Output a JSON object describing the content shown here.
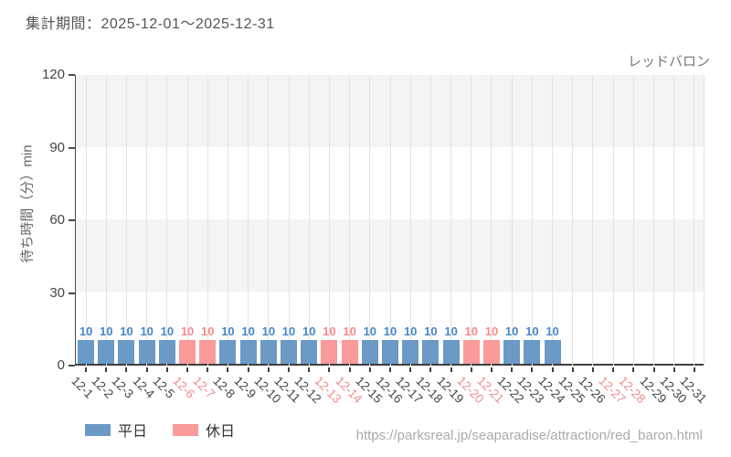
{
  "header": {
    "title": "集計期間：2025-12-01～2025-12-31"
  },
  "footer": {
    "url": "https://parksreal.jp/seaparadise/attraction/red_baron.html"
  },
  "chart_data": {
    "type": "bar",
    "title": "レッドバロン",
    "xlabel": "",
    "ylabel": "待ち時間（分）min",
    "ylim": [
      0,
      120
    ],
    "yticks": [
      0,
      30,
      60,
      90,
      120
    ],
    "grid": "horizontal gray bands every 30 units, light vertical gridline per category",
    "legend_position": "bottom-left",
    "categories": [
      "12-1",
      "12-2",
      "12-3",
      "12-4",
      "12-5",
      "12-6",
      "12-7",
      "12-8",
      "12-9",
      "12-10",
      "12-11",
      "12-12",
      "12-13",
      "12-14",
      "12-15",
      "12-16",
      "12-17",
      "12-18",
      "12-19",
      "12-20",
      "12-21",
      "12-22",
      "12-23",
      "12-24",
      "12-25",
      "12-26",
      "12-27",
      "12-28",
      "12-29",
      "12-30",
      "12-31"
    ],
    "series": [
      {
        "name": "平日",
        "color": "#6b9ac6",
        "value_label_color": "#4687c7",
        "values": [
          10,
          10,
          10,
          10,
          10,
          null,
          null,
          10,
          10,
          10,
          10,
          10,
          null,
          null,
          10,
          10,
          10,
          10,
          10,
          null,
          null,
          10,
          10,
          10,
          null,
          null,
          null,
          null,
          null,
          null,
          null
        ]
      },
      {
        "name": "休日",
        "color": "#fa9a9a",
        "value_label_color": "#fa8a8a",
        "values": [
          null,
          null,
          null,
          null,
          null,
          10,
          10,
          null,
          null,
          null,
          null,
          null,
          10,
          10,
          null,
          null,
          null,
          null,
          null,
          10,
          10,
          null,
          null,
          null,
          null,
          null,
          null,
          null,
          null,
          null,
          null
        ]
      }
    ],
    "holiday_indices": [
      5,
      6,
      12,
      13,
      19,
      20,
      26,
      27
    ],
    "colors": {
      "tick_label": "#454545",
      "holiday_tick_label": "#f28b8b",
      "gridline": "#e3e3e3",
      "axis": "#3f3f3f",
      "band": "#f4f4f4"
    }
  }
}
